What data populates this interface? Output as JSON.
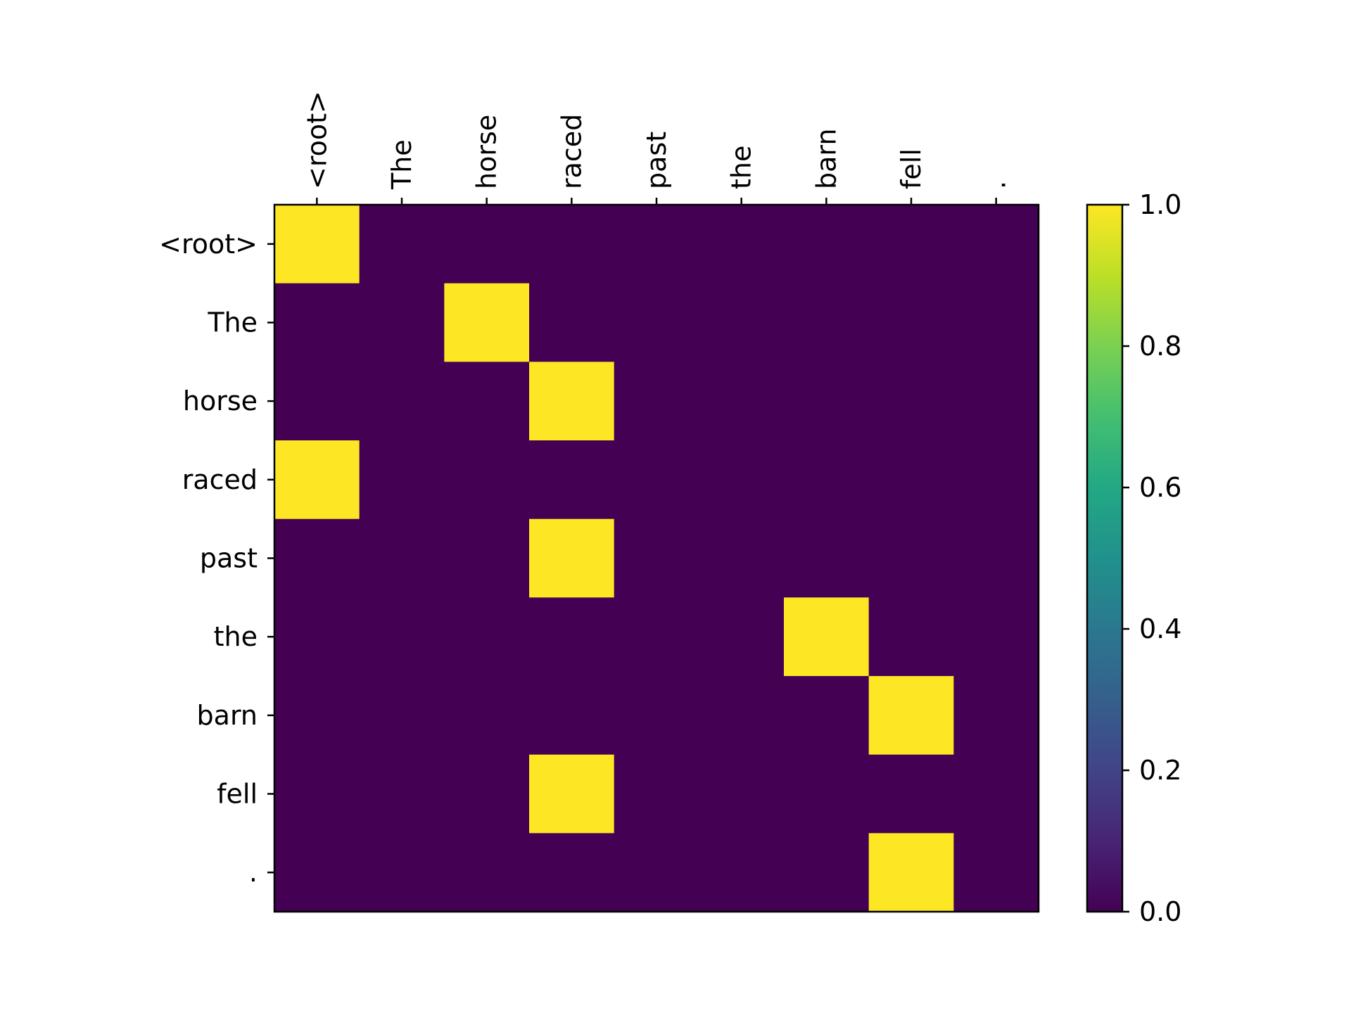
{
  "chart_data": {
    "type": "heatmap",
    "title": "",
    "xlabel": "",
    "ylabel": "",
    "x_labels": [
      "<root>",
      "The",
      "horse",
      "raced",
      "past",
      "the",
      "barn",
      "fell",
      "."
    ],
    "y_labels": [
      "<root>",
      "The",
      "horse",
      "raced",
      "past",
      "the",
      "barn",
      "fell",
      "."
    ],
    "x_tick_position": "top",
    "values": [
      [
        1,
        0,
        0,
        0,
        0,
        0,
        0,
        0,
        0
      ],
      [
        0,
        0,
        1,
        0,
        0,
        0,
        0,
        0,
        0
      ],
      [
        0,
        0,
        0,
        1,
        0,
        0,
        0,
        0,
        0
      ],
      [
        1,
        0,
        0,
        0,
        0,
        0,
        0,
        0,
        0
      ],
      [
        0,
        0,
        0,
        1,
        0,
        0,
        0,
        0,
        0
      ],
      [
        0,
        0,
        0,
        0,
        0,
        0,
        1,
        0,
        0
      ],
      [
        0,
        0,
        0,
        0,
        0,
        0,
        0,
        1,
        0
      ],
      [
        0,
        0,
        0,
        1,
        0,
        0,
        0,
        0,
        0
      ],
      [
        0,
        0,
        0,
        0,
        0,
        0,
        0,
        1,
        0
      ]
    ],
    "colormap": "viridis",
    "colorbar": {
      "range": [
        0.0,
        1.0
      ],
      "ticks": [
        0.0,
        0.2,
        0.4,
        0.6,
        0.8,
        1.0
      ],
      "tick_labels": [
        "0.0",
        "0.2",
        "0.4",
        "0.6",
        "0.8",
        "1.0"
      ]
    },
    "grid": false
  }
}
